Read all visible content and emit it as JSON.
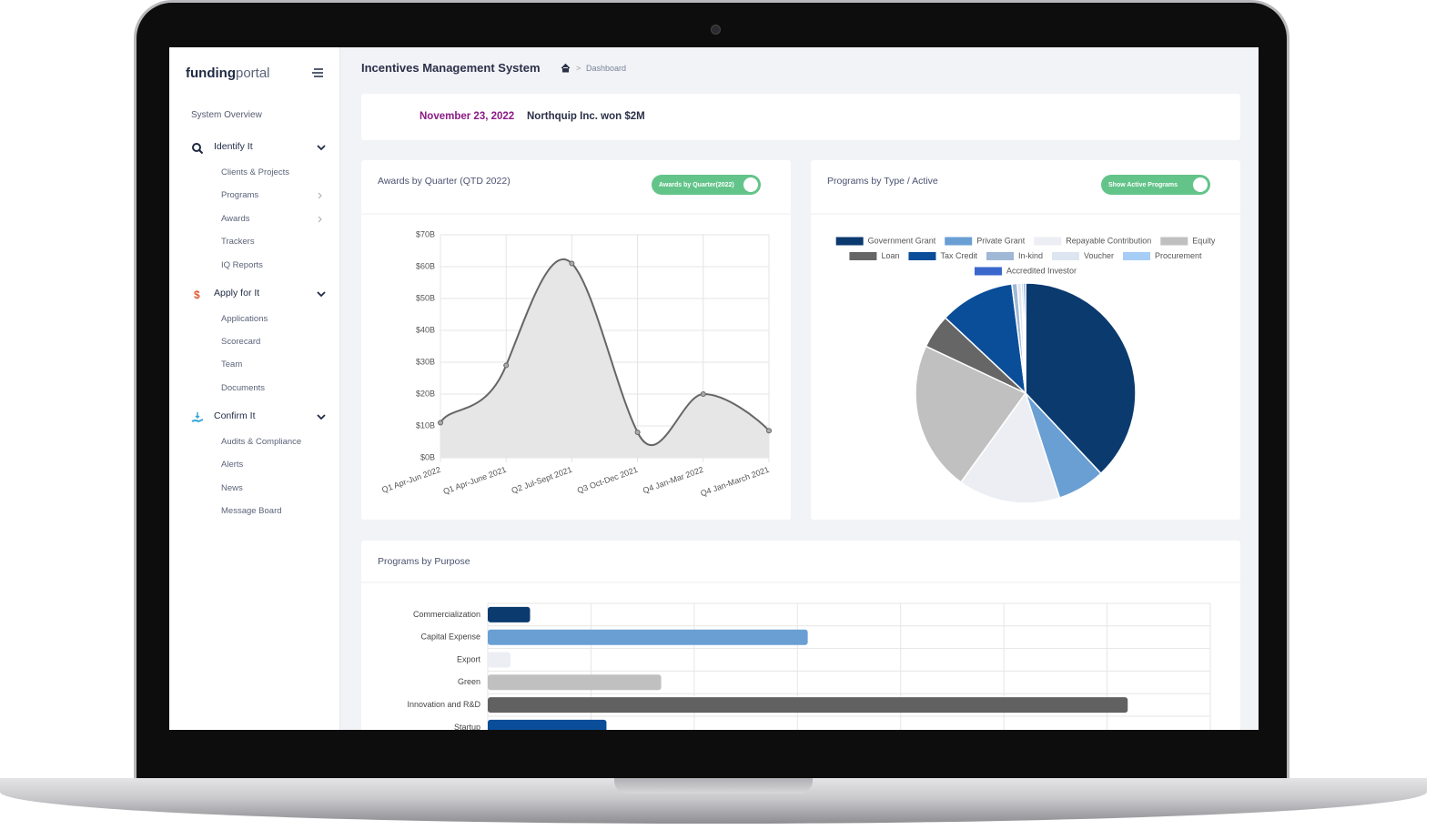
{
  "brand": {
    "bold": "funding",
    "light": "portal"
  },
  "sidebar": {
    "overview": "System Overview",
    "sections": [
      {
        "title": "Identify It",
        "items": [
          "Clients & Projects",
          "Programs",
          "Awards",
          "Trackers",
          "IQ Reports"
        ]
      },
      {
        "title": "Apply for It",
        "items": [
          "Applications",
          "Scorecard",
          "Team",
          "Documents"
        ]
      },
      {
        "title": "Confirm It",
        "items": [
          "Audits & Compliance",
          "Alerts",
          "News",
          "Message Board"
        ]
      }
    ]
  },
  "header": {
    "title": "Incentives Management System",
    "breadcrumb": "Dashboard"
  },
  "banner": {
    "date": "November 23, 2022",
    "message": "Northquip Inc. won $2M"
  },
  "chart_data": [
    {
      "type": "line",
      "title": "Awards by Quarter (QTD 2022)",
      "toggle": "Awards by Quarter(2022)",
      "categories": [
        "Q1 Apr-Jun 2022",
        "Q1 Apr-June 2021",
        "Q2 Jul-Sept 2021",
        "Q3 Oct-Dec 2021",
        "Q4 Jan-Mar 2022",
        "Q4 Jan-March 2021"
      ],
      "values": [
        11,
        29,
        61,
        8,
        20,
        8.5
      ],
      "color": "#666666",
      "fill": "#e6e6e6",
      "ylim": [
        0,
        70
      ],
      "yticks": [
        {
          "value": 0,
          "label": "$0B"
        },
        {
          "value": 10,
          "label": "$10B"
        },
        {
          "value": 20,
          "label": "$20B"
        },
        {
          "value": 30,
          "label": "$30B"
        },
        {
          "value": 40,
          "label": "$40B"
        },
        {
          "value": 50,
          "label": "$50B"
        },
        {
          "value": 60,
          "label": "$60B"
        },
        {
          "value": 70,
          "label": "$70B"
        }
      ],
      "grid": true
    },
    {
      "type": "pie",
      "title": "Programs by Type / Active",
      "toggle": "Show Active Programs",
      "categories": [
        "Government Grant",
        "Private Grant",
        "Repayable Contribution",
        "Equity",
        "Loan",
        "Tax Credit",
        "In-kind",
        "Voucher",
        "Procurement",
        "Accredited Investor"
      ],
      "values": [
        38,
        7,
        15,
        22,
        5,
        11,
        0.8,
        0.6,
        0.3,
        0.3
      ],
      "colors": [
        "#0b3a6e",
        "#6a9fd4",
        "#eceef3",
        "#c0c0c0",
        "#666666",
        "#0a4d99",
        "#9fb8d6",
        "#dde6f0",
        "#a6cdf5",
        "#3a67cc"
      ]
    },
    {
      "type": "bar",
      "horizontal": true,
      "title": "Programs by Purpose",
      "categories": [
        "Commercialization",
        "Capital Expense",
        "Export",
        "Green",
        "Innovation and R&D",
        "Startup"
      ],
      "values": [
        0.41,
        3.1,
        0.22,
        1.68,
        6.2,
        1.15
      ],
      "colors": [
        "#0b3a6e",
        "#6a9fd4",
        "#eceef3",
        "#c0c0c0",
        "#616161",
        "#0a4d99"
      ],
      "xlim": [
        0,
        7
      ],
      "xticks": [
        0,
        1,
        2,
        3,
        4,
        5,
        6,
        7
      ],
      "grid": true
    }
  ]
}
